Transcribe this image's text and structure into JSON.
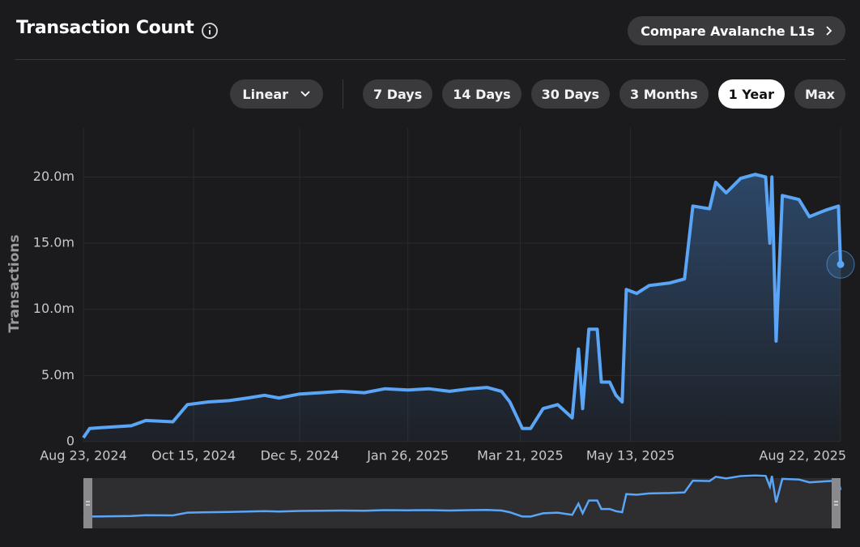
{
  "toolbar": {
    "compare": "Compare Avalanche L1s",
    "scale": "Linear",
    "ranges": [
      "7 Days",
      "14 Days",
      "30 Days",
      "3 Months",
      "1 Year",
      "Max"
    ],
    "active_range": "1 Year"
  },
  "chart_data": {
    "type": "line",
    "title": "Transaction Count",
    "y_label": "Transactions",
    "x": [
      "2024-08-23",
      "2024-08-26",
      "2024-09-05",
      "2024-09-15",
      "2024-09-22",
      "2024-10-05",
      "2024-10-12",
      "2024-10-22",
      "2024-11-01",
      "2024-11-10",
      "2024-11-18",
      "2024-11-25",
      "2024-12-05",
      "2024-12-15",
      "2024-12-25",
      "2025-01-05",
      "2025-01-15",
      "2025-01-26",
      "2025-02-05",
      "2025-02-15",
      "2025-02-25",
      "2025-03-05",
      "2025-03-12",
      "2025-03-16",
      "2025-03-22",
      "2025-03-26",
      "2025-04-01",
      "2025-04-08",
      "2025-04-15",
      "2025-04-18",
      "2025-04-20",
      "2025-04-23",
      "2025-04-27",
      "2025-04-29",
      "2025-05-03",
      "2025-05-06",
      "2025-05-09",
      "2025-05-11",
      "2025-05-16",
      "2025-05-22",
      "2025-06-01",
      "2025-06-08",
      "2025-06-12",
      "2025-06-20",
      "2025-06-23",
      "2025-06-28",
      "2025-07-05",
      "2025-07-12",
      "2025-07-17",
      "2025-07-19",
      "2025-07-20",
      "2025-07-22",
      "2025-07-25",
      "2025-08-02",
      "2025-08-07",
      "2025-08-15",
      "2025-08-21",
      "2025-08-22"
    ],
    "series": [
      {
        "name": "Transactions",
        "color": "#5aa5f5",
        "values": [
          300000,
          1000000,
          1100000,
          1200000,
          1600000,
          1500000,
          2800000,
          3000000,
          3100000,
          3300000,
          3500000,
          3300000,
          3600000,
          3700000,
          3800000,
          3700000,
          4000000,
          3900000,
          4000000,
          3800000,
          4000000,
          4100000,
          3800000,
          3000000,
          1000000,
          1000000,
          2500000,
          2800000,
          1800000,
          7000000,
          2500000,
          8500000,
          8500000,
          4500000,
          4500000,
          3500000,
          3000000,
          11500000,
          11200000,
          11800000,
          12000000,
          12300000,
          17800000,
          17600000,
          19600000,
          18800000,
          19900000,
          20200000,
          20000000,
          15000000,
          20000000,
          7600000,
          18600000,
          18300000,
          17000000,
          17500000,
          17800000,
          13400000
        ]
      }
    ],
    "xlim": [
      "2024-08-23",
      "2025-08-22"
    ],
    "xticks": [
      {
        "value": "2024-08-23",
        "label": "Aug 23, 2024"
      },
      {
        "value": "2024-10-15",
        "label": "Oct 15, 2024"
      },
      {
        "value": "2024-12-05",
        "label": "Dec 5, 2024"
      },
      {
        "value": "2025-01-26",
        "label": "Jan 26, 2025"
      },
      {
        "value": "2025-03-21",
        "label": "Mar 21, 2025"
      },
      {
        "value": "2025-05-13",
        "label": "May 13, 2025"
      },
      {
        "value": "2025-08-22",
        "label": "Aug 22, 2025"
      }
    ],
    "ylim": [
      0,
      23700000
    ],
    "yticks": [
      0,
      {
        "value": 5000000,
        "label": "5.0m"
      },
      {
        "value": 10000000,
        "label": "10.0m"
      },
      {
        "value": 15000000,
        "label": "15.0m"
      },
      {
        "value": {
          "value": 20000000
        },
        "label": "20.0m"
      }
    ],
    "grid": true
  }
}
